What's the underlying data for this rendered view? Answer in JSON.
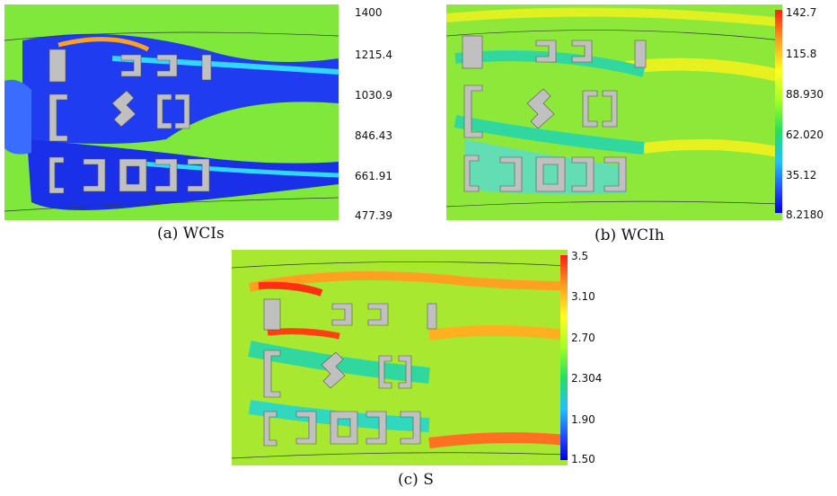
{
  "panels": [
    {
      "id": "a",
      "caption": "(a) WCIs",
      "colorbar_ticks": [
        "1400",
        "1215.4",
        "1030.9",
        "846.434",
        "661.91",
        "477.39"
      ],
      "colormap": [
        "#ff2010",
        "#ffa020",
        "#ffff20",
        "#a0ff20",
        "#20e060",
        "#20c0ff",
        "#2040ff",
        "#0000e0"
      ]
    },
    {
      "id": "b",
      "caption": "(b) WCIh",
      "colorbar_ticks": [
        "142.7",
        "115.8",
        "88.930",
        "62.020",
        "35.12",
        "8.2180"
      ],
      "colormap": [
        "#ff2010",
        "#ffa020",
        "#ffff20",
        "#a0ff20",
        "#20e060",
        "#20c0ff",
        "#2040ff",
        "#0000e0"
      ]
    },
    {
      "id": "c",
      "caption": "(c) S",
      "colorbar_ticks": [
        "3.5",
        "3.10",
        "2.70",
        "2.304",
        "1.90",
        "1.50"
      ],
      "colormap": [
        "#ff2010",
        "#ffa020",
        "#ffff20",
        "#a0ff20",
        "#20e060",
        "#20c0ff",
        "#2040ff",
        "#0000e0"
      ]
    }
  ],
  "colors": {
    "field_base": "#7fe83a",
    "building": "#c0c0c0",
    "contour": "#2f3f2f"
  }
}
